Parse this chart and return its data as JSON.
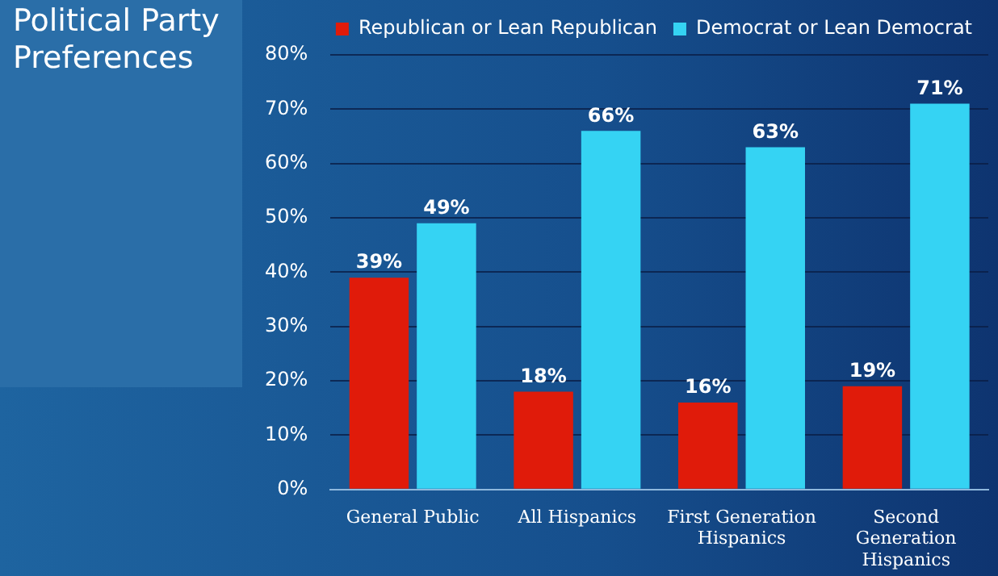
{
  "chart_data": {
    "type": "bar",
    "title": "Political Party Preferences",
    "categories": [
      "General Public",
      "All Hispanics",
      "First Generation Hispanics",
      "Second Generation Hispanics"
    ],
    "series": [
      {
        "name": "Republican or Lean Republican",
        "color": "#e01b0a",
        "values": [
          39,
          18,
          16,
          19
        ],
        "value_labels": [
          "39%",
          "18%",
          "16%",
          "19%"
        ]
      },
      {
        "name": "Democrat or Lean Democrat",
        "color": "#35d3f3",
        "values": [
          49,
          66,
          63,
          71
        ],
        "value_labels": [
          "49%",
          "66%",
          "63%",
          "71%"
        ]
      }
    ],
    "ylim": [
      0,
      80
    ],
    "yticks": [
      {
        "value": 0,
        "label": "0%"
      },
      {
        "value": 10,
        "label": "10%"
      },
      {
        "value": 20,
        "label": "20%"
      },
      {
        "value": 30,
        "label": "30%"
      },
      {
        "value": 40,
        "label": "40%"
      },
      {
        "value": 50,
        "label": "50%"
      },
      {
        "value": 60,
        "label": "60%"
      },
      {
        "value": 70,
        "label": "70%"
      },
      {
        "value": 80,
        "label": "80%"
      }
    ],
    "grid": "y",
    "legend": "top"
  }
}
